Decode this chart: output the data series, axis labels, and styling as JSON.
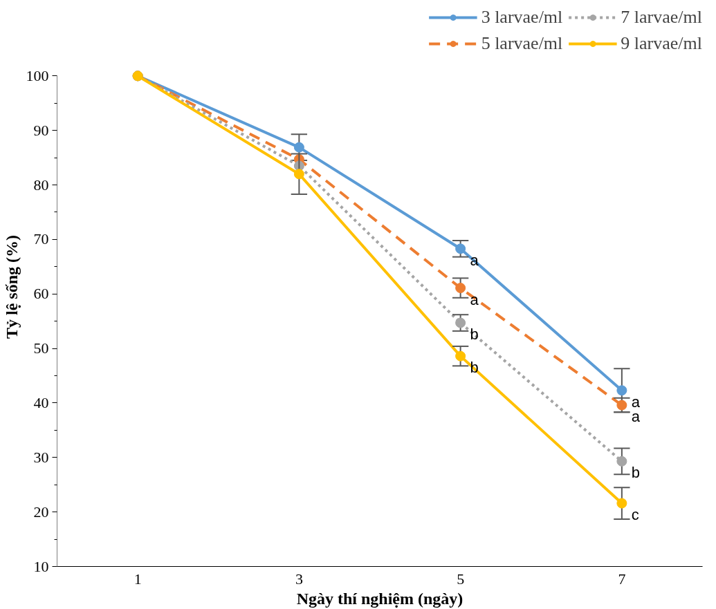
{
  "chart_data": {
    "type": "line",
    "xlabel": "Ngày thí nghiệm (ngày)",
    "ylabel": "Tỷ lệ sống (%)",
    "categories": [
      "1",
      "3",
      "5",
      "7"
    ],
    "series": [
      {
        "name": "3 larvae/ml",
        "color": "#5b9bd5",
        "line_style": "solid",
        "values": [
          100,
          86.9,
          68.3,
          42.3
        ],
        "errors": [
          null,
          2.4,
          1.5,
          4
        ]
      },
      {
        "name": "5 larvae/ml",
        "color": "#ed7d31",
        "line_style": "dashed",
        "values": [
          100,
          84.7,
          61.1,
          39.6
        ],
        "errors": [
          null,
          null,
          1.8,
          1.3
        ]
      },
      {
        "name": "7 larvae/ml",
        "color": "#a5a5a5",
        "line_style": "dotted",
        "values": [
          100,
          83.5,
          54.7,
          29.3
        ],
        "errors": [
          null,
          null,
          1.5,
          2.4
        ]
      },
      {
        "name": "9 larvae/ml",
        "color": "#ffc000",
        "line_style": "solid",
        "values": [
          100,
          82.0,
          48.6,
          21.6
        ],
        "errors": [
          null,
          3.7,
          1.8,
          2.9
        ]
      }
    ],
    "ylim": [
      10,
      100
    ],
    "yticks": [
      10,
      20,
      30,
      40,
      50,
      60,
      70,
      80,
      90,
      100
    ],
    "grid": false,
    "legend": "top",
    "marker": "circle",
    "annotations": [
      {
        "text": "a",
        "x": "5",
        "y": 68.3
      },
      {
        "text": "a",
        "x": "5",
        "y": 61.1
      },
      {
        "text": "b",
        "x": "5",
        "y": 54.7
      },
      {
        "text": "b",
        "x": "5",
        "y": 48.6
      },
      {
        "text": "a",
        "x": "7",
        "y": 42.3
      },
      {
        "text": "a",
        "x": "7",
        "y": 39.6
      },
      {
        "text": "b",
        "x": "7",
        "y": 29.3
      },
      {
        "text": "c",
        "x": "7",
        "y": 21.6
      }
    ]
  }
}
